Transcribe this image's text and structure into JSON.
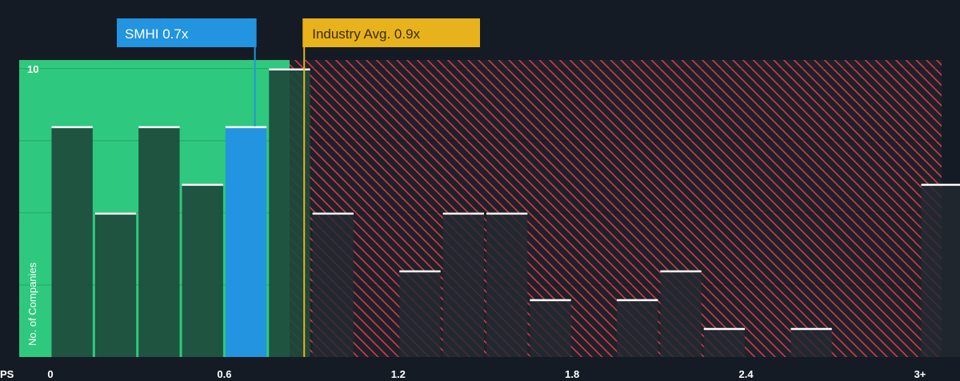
{
  "chart_data": {
    "type": "bar",
    "x_axis_label": "PS",
    "y_axis_label": "No. of Companies",
    "x_ticks": [
      "0",
      "0.6",
      "1.2",
      "1.8",
      "2.4",
      "3+"
    ],
    "x_tick_values": [
      0,
      0.6,
      1.2,
      1.8,
      2.4,
      3.0
    ],
    "y_ticks": [
      "10"
    ],
    "y_tick_values": [
      10
    ],
    "ylim": [
      0,
      10.3
    ],
    "xlim": [
      -0.1,
      3.1
    ],
    "bin_width": 0.15,
    "bars": [
      {
        "x": 0.0,
        "value": 8
      },
      {
        "x": 0.15,
        "value": 5
      },
      {
        "x": 0.3,
        "value": 8
      },
      {
        "x": 0.45,
        "value": 6
      },
      {
        "x": 0.6,
        "value": 8,
        "highlight": true
      },
      {
        "x": 0.75,
        "value": 10
      },
      {
        "x": 0.9,
        "value": 5
      },
      {
        "x": 1.2,
        "value": 3
      },
      {
        "x": 1.35,
        "value": 5
      },
      {
        "x": 1.5,
        "value": 5
      },
      {
        "x": 1.65,
        "value": 2
      },
      {
        "x": 1.95,
        "value": 2
      },
      {
        "x": 2.1,
        "value": 3
      },
      {
        "x": 2.25,
        "value": 1
      },
      {
        "x": 2.55,
        "value": 1
      },
      {
        "x": 3.0,
        "value": 6
      }
    ],
    "company": {
      "label": "SMHI 0.7x",
      "value": 0.7
    },
    "industry": {
      "label": "Industry Avg. 0.9x",
      "value": 0.87
    },
    "colors": {
      "background": "#151b24",
      "undervalued_zone": "#2ec97e",
      "overvalued_hatch": "#d63a48",
      "bar": "#1e4a3c",
      "bar_overvalued": "#232a31",
      "highlight_bar": "#2394e0",
      "company_callout": "#2394e0",
      "industry_callout": "#e8b21c",
      "cap": "#ffffff"
    }
  }
}
